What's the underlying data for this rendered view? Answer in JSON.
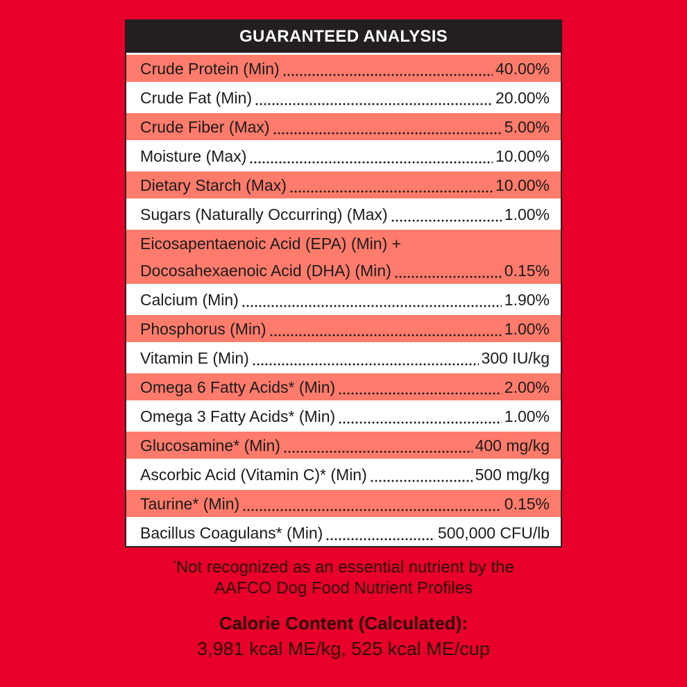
{
  "title": "GUARANTEED ANALYSIS",
  "rows": [
    {
      "label": "Crude Protein (Min)",
      "value": "40.00%"
    },
    {
      "label": "Crude Fat (Min)",
      "value": "20.00%"
    },
    {
      "label": "Crude Fiber (Max)",
      "value": "5.00%"
    },
    {
      "label": "Moisture (Max)",
      "value": "10.00%"
    },
    {
      "label": "Dietary Starch (Max)",
      "value": "10.00%"
    },
    {
      "label": "Sugars (Naturally Occurring) (Max)",
      "value": "1.00%"
    },
    {
      "label": "Eicosapentaenoic Acid (EPA) (Min) +",
      "label2": "Docosahexaenoic Acid (DHA) (Min)",
      "value": "0.15%"
    },
    {
      "label": "Calcium (Min)",
      "value": "1.90%"
    },
    {
      "label": "Phosphorus (Min)",
      "value": "1.00%"
    },
    {
      "label": "Vitamin E (Min)",
      "value": "300 IU/kg"
    },
    {
      "label": "Omega 6 Fatty Acids* (Min)",
      "value": "2.00%"
    },
    {
      "label": "Omega 3 Fatty Acids* (Min)",
      "value": "1.00%"
    },
    {
      "label": "Glucosamine* (Min)",
      "value": "400 mg/kg"
    },
    {
      "label": "Ascorbic Acid (Vitamin C)* (Min)",
      "value": "500 mg/kg"
    },
    {
      "label": "Taurine* (Min)",
      "value": "0.15%"
    },
    {
      "label": "Bacillus Coagulans* (Min)",
      "value": "500,000 CFU/lb"
    }
  ],
  "footnote": {
    "mark": "*",
    "line1": "Not recognized as an essential nutrient by the",
    "line2": "AAFCO Dog Food Nutrient Profiles"
  },
  "calorie": {
    "title": "Calorie Content (Calculated):",
    "value": "3,981 kcal ME/kg, 525 kcal ME/cup"
  },
  "colors": {
    "background": "#E8002A",
    "header": "#231f20",
    "row_alt": "#FF7B6B",
    "row": "#FFFFFF"
  }
}
